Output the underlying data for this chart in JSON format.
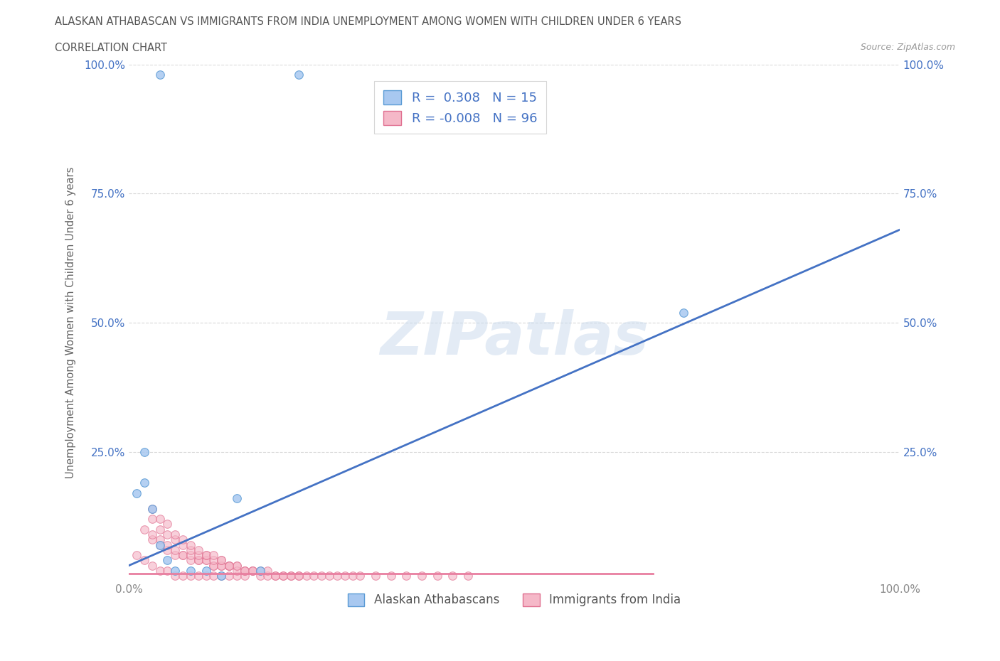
{
  "title_line1": "ALASKAN ATHABASCAN VS IMMIGRANTS FROM INDIA UNEMPLOYMENT AMONG WOMEN WITH CHILDREN UNDER 6 YEARS",
  "title_line2": "CORRELATION CHART",
  "source_text": "Source: ZipAtlas.com",
  "ylabel": "Unemployment Among Women with Children Under 6 years",
  "xlim": [
    0.0,
    1.0
  ],
  "ylim": [
    0.0,
    1.0
  ],
  "background_color": "#ffffff",
  "grid_color": "#d0d0d0",
  "watermark_text": "ZIPatlas",
  "blue_scatter_x": [
    0.04,
    0.22,
    0.01,
    0.02,
    0.03,
    0.04,
    0.05,
    0.06,
    0.08,
    0.1,
    0.12,
    0.14,
    0.17,
    0.72,
    0.02
  ],
  "blue_scatter_y": [
    0.98,
    0.98,
    0.17,
    0.19,
    0.14,
    0.07,
    0.04,
    0.02,
    0.02,
    0.02,
    0.01,
    0.16,
    0.02,
    0.52,
    0.25
  ],
  "pink_scatter_x": [
    0.01,
    0.02,
    0.03,
    0.03,
    0.04,
    0.04,
    0.05,
    0.05,
    0.06,
    0.06,
    0.07,
    0.07,
    0.08,
    0.08,
    0.09,
    0.09,
    0.1,
    0.1,
    0.11,
    0.11,
    0.12,
    0.12,
    0.13,
    0.13,
    0.14,
    0.14,
    0.15,
    0.15,
    0.16,
    0.17,
    0.18,
    0.19,
    0.2,
    0.21,
    0.22,
    0.23,
    0.24,
    0.25,
    0.26,
    0.27,
    0.28,
    0.29,
    0.3,
    0.32,
    0.34,
    0.36,
    0.38,
    0.4,
    0.42,
    0.44,
    0.02,
    0.03,
    0.04,
    0.05,
    0.06,
    0.07,
    0.08,
    0.09,
    0.1,
    0.11,
    0.12,
    0.13,
    0.14,
    0.15,
    0.16,
    0.17,
    0.18,
    0.19,
    0.2,
    0.21,
    0.22,
    0.03,
    0.04,
    0.05,
    0.06,
    0.07,
    0.08,
    0.09,
    0.1,
    0.11,
    0.12,
    0.13,
    0.14,
    0.15,
    0.16,
    0.03,
    0.04,
    0.05,
    0.06,
    0.07,
    0.08,
    0.09,
    0.1,
    0.11,
    0.12,
    0.13
  ],
  "pink_scatter_y": [
    0.05,
    0.04,
    0.08,
    0.03,
    0.07,
    0.02,
    0.06,
    0.02,
    0.05,
    0.01,
    0.05,
    0.01,
    0.04,
    0.01,
    0.04,
    0.01,
    0.04,
    0.01,
    0.03,
    0.01,
    0.03,
    0.01,
    0.03,
    0.01,
    0.03,
    0.01,
    0.02,
    0.01,
    0.02,
    0.01,
    0.01,
    0.01,
    0.01,
    0.01,
    0.01,
    0.01,
    0.01,
    0.01,
    0.01,
    0.01,
    0.01,
    0.01,
    0.01,
    0.01,
    0.01,
    0.01,
    0.01,
    0.01,
    0.01,
    0.01,
    0.1,
    0.09,
    0.08,
    0.07,
    0.06,
    0.05,
    0.05,
    0.04,
    0.04,
    0.03,
    0.03,
    0.03,
    0.02,
    0.02,
    0.02,
    0.02,
    0.02,
    0.01,
    0.01,
    0.01,
    0.01,
    0.12,
    0.1,
    0.09,
    0.08,
    0.07,
    0.06,
    0.05,
    0.05,
    0.04,
    0.04,
    0.03,
    0.03,
    0.02,
    0.02,
    0.14,
    0.12,
    0.11,
    0.09,
    0.08,
    0.07,
    0.06,
    0.05,
    0.05,
    0.04,
    0.03
  ],
  "blue_line_x": [
    0.0,
    1.0
  ],
  "blue_line_y": [
    0.03,
    0.68
  ],
  "blue_line_color": "#4472c4",
  "pink_line_x": [
    0.0,
    0.68
  ],
  "pink_line_y": [
    0.015,
    0.015
  ],
  "pink_line_color": "#e87fa0",
  "blue_color": "#a8c8f0",
  "pink_color": "#f5b8c8",
  "blue_edge_color": "#5b9bd5",
  "pink_edge_color": "#e07090",
  "legend_blue_R": "0.308",
  "legend_blue_N": "15",
  "legend_pink_R": "-0.008",
  "legend_pink_N": "96",
  "legend_text_color": "#4472c4",
  "scatter_size": 70,
  "title_fontsize": 11,
  "axis_label_fontsize": 10.5,
  "tick_fontsize": 11
}
